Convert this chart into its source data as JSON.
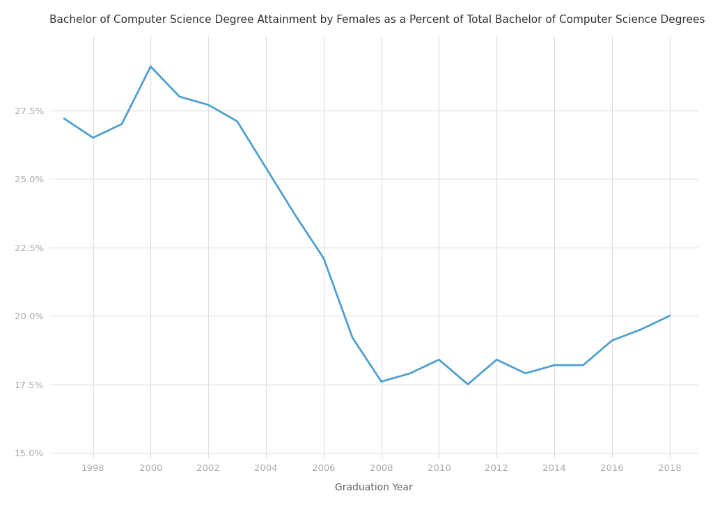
{
  "title": "Bachelor of Computer Science Degree Attainment by Females as a Percent of Total Bachelor of Computer Science Degrees",
  "xlabel": "Graduation Year",
  "ylabel": "",
  "years": [
    1997,
    1998,
    1999,
    2000,
    2001,
    2002,
    2003,
    2004,
    2005,
    2006,
    2007,
    2008,
    2009,
    2010,
    2011,
    2012,
    2013,
    2014,
    2015,
    2016,
    2017,
    2018
  ],
  "values": [
    0.272,
    0.265,
    0.27,
    0.291,
    0.28,
    0.277,
    0.271,
    0.254,
    0.237,
    0.221,
    0.192,
    0.176,
    0.179,
    0.184,
    0.175,
    0.184,
    0.179,
    0.182,
    0.182,
    0.191,
    0.195,
    0.2
  ],
  "line_color": "#4f9fcf",
  "line_width": 2.0,
  "background_color": "#ffffff",
  "grid_color": "#dddddd",
  "tick_color": "#aaaaaa",
  "label_color": "#666666",
  "title_color": "#333333",
  "ylim": [
    0.148,
    0.302
  ],
  "yticks": [
    0.15,
    0.175,
    0.2,
    0.225,
    0.25,
    0.275
  ],
  "ytick_labels": [
    "15.0%",
    "17.5%",
    "20.0%",
    "22.5%",
    "25.0%",
    "27.5%"
  ],
  "xlim": [
    1996.5,
    2019.0
  ],
  "xticks": [
    1998,
    2000,
    2002,
    2004,
    2006,
    2008,
    2010,
    2012,
    2014,
    2016,
    2018
  ],
  "title_fontsize": 11,
  "axis_label_fontsize": 10,
  "tick_fontsize": 9.5
}
